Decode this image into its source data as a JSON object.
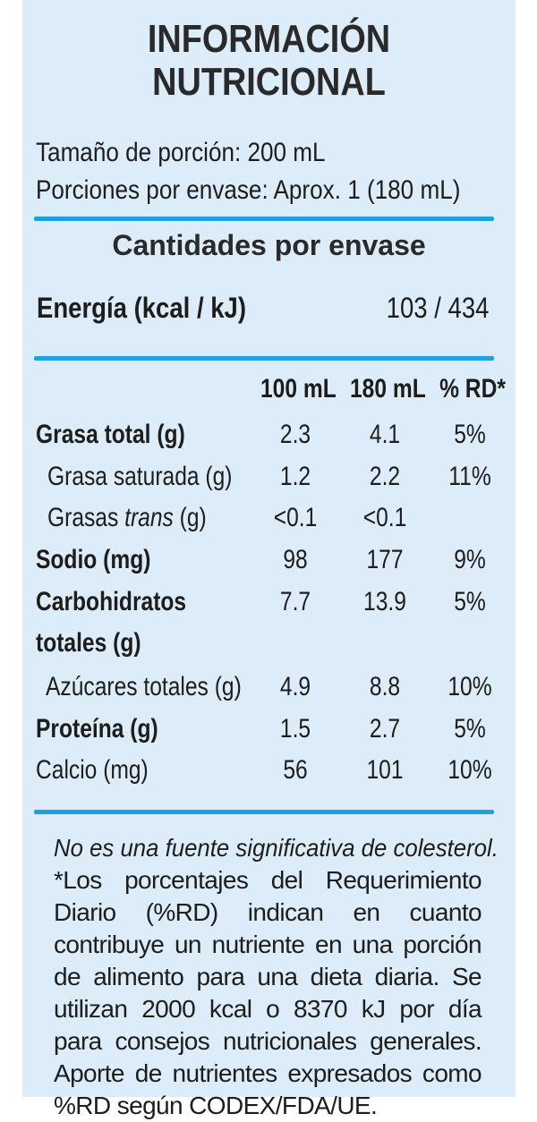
{
  "title": {
    "line1": "INFORMACIÓN",
    "line2": "NUTRICIONAL"
  },
  "serving": {
    "size": "Tamaño de porción: 200 mL",
    "per_container": "Porciones por envase:  Aprox. 1 (180 mL)"
  },
  "section_title": "Cantidades por envase",
  "energy": {
    "label": "Energía (kcal / kJ)",
    "value": "103 / 434"
  },
  "columns": [
    "100 mL",
    "180 mL",
    "% RD*"
  ],
  "rows": [
    {
      "label_a": "Grasa total (g)",
      "v1": "2.3",
      "v2": "4.1",
      "v3": "5%"
    },
    {
      "label_a": "Grasa saturada (g)",
      "v1": "1.2",
      "v2": "2.2",
      "v3": "11%"
    },
    {
      "label_a": "Grasas ",
      "label_italic": "trans",
      "label_b": " (g)",
      "v1": "<0.1",
      "v2": "<0.1",
      "v3": ""
    },
    {
      "label_a": "Sodio (mg)",
      "v1": "98",
      "v2": "177",
      "v3": "9%"
    },
    {
      "label_a": "Carbohidratos",
      "label_line2": "totales (g)",
      "v1": "7.7",
      "v2": "13.9",
      "v3": "5%"
    },
    {
      "label_a": "Azúcares totales (g)",
      "v1": "4.9",
      "v2": "8.8",
      "v3": "10%"
    },
    {
      "label_a": "Proteína (g)",
      "v1": "1.5",
      "v2": "2.7",
      "v3": "5%"
    },
    {
      "label_a": "Calcio (mg)",
      "v1": "56",
      "v2": "101",
      "v3": "10%"
    }
  ],
  "footnote": {
    "note": "No es una fuente significativa de colesterol.",
    "text": "*Los porcentajes del Requerimiento Diario (%RD) indican en cuanto contribuye un nutriente en una porción de alimento para una dieta diaria. Se utilizan 2000 kcal o 8370 kJ por día para consejos nutricionales generales. Aporte de nutrientes expresados como %RD según CODEX/FDA/UE."
  },
  "colors": {
    "background": "#ddecf9",
    "rule": "#1aa3de",
    "text": "#1d1d1b"
  }
}
